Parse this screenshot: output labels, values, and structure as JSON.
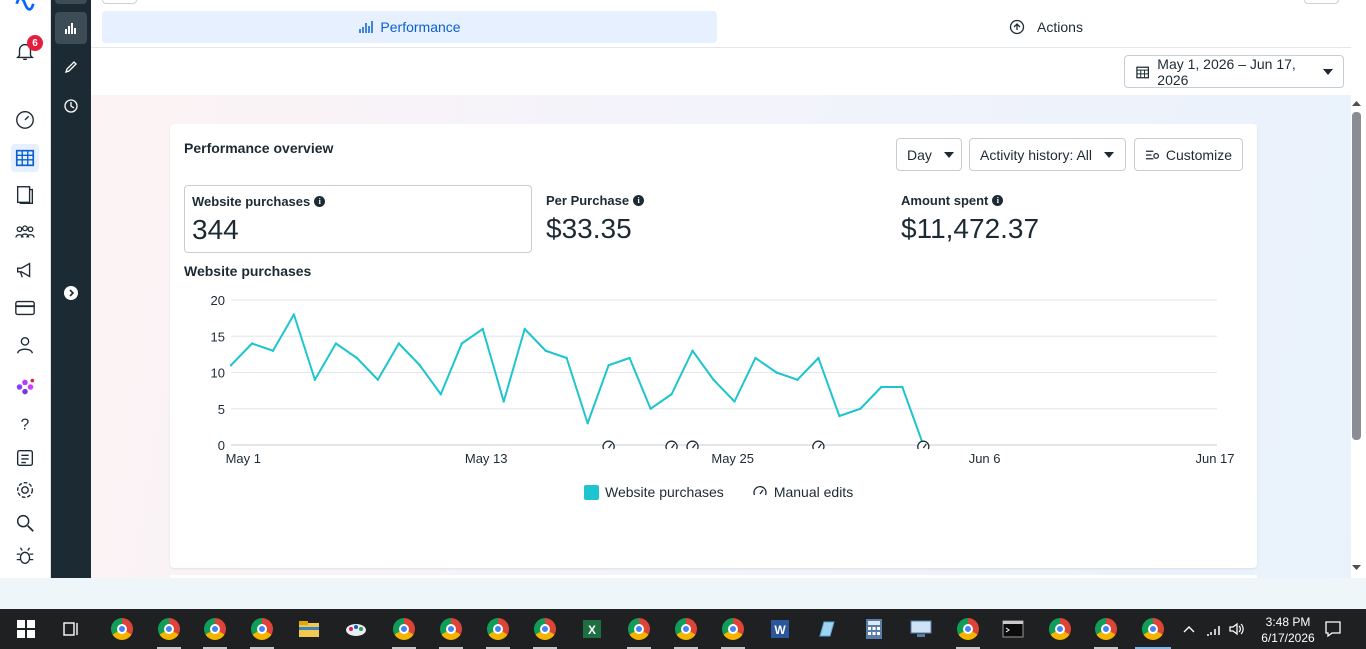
{
  "left_nav": {
    "notification_count": "6",
    "icons": [
      "meta-logo-icon",
      "bell-icon",
      "gauge-icon",
      "table-icon",
      "pages-icon",
      "audience-icon",
      "megaphone-icon",
      "billing-card-icon",
      "business-users-icon",
      "apps-icon",
      "help-icon",
      "news-icon",
      "settings-gear-icon",
      "search-icon",
      "bug-icon"
    ]
  },
  "sub_nav": {
    "icons": [
      "bar-chart-icon",
      "pencil-icon",
      "history-clock-icon",
      "expand-arrow-icon"
    ]
  },
  "tabs": {
    "performance": "Performance",
    "actions": "Actions"
  },
  "date_range": {
    "label": "May 1, 2026 – Jun 17, 2026"
  },
  "card": {
    "title": "Performance overview",
    "day_button": "Day",
    "activity_button": "Activity history: All",
    "customize_button": "Customize",
    "metrics": [
      {
        "label": "Website purchases",
        "value": "344",
        "selected": true
      },
      {
        "label": "Per Purchase",
        "value": "$33.35",
        "selected": false
      },
      {
        "label": "Amount spent",
        "value": "$11,472.37",
        "selected": false
      }
    ],
    "chart_title": "Website purchases"
  },
  "chart_data": {
    "type": "line",
    "title": "Website purchases",
    "xlabel": "",
    "ylabel": "",
    "ylim": [
      0,
      20
    ],
    "yticks": [
      "0",
      "5",
      "10",
      "15",
      "20"
    ],
    "xticks": [
      "May 1",
      "May 13",
      "May 25",
      "Jun 6",
      "Jun 17"
    ],
    "x_start": "May 1",
    "x_end": "Jun 17",
    "grid": true,
    "legend_position": "bottom",
    "color": "#1ec5ce",
    "series": [
      {
        "name": "Website purchases",
        "values": [
          11,
          14,
          13,
          18,
          9,
          14,
          12,
          9,
          14,
          11,
          7,
          14,
          16,
          6,
          16,
          13,
          12,
          3,
          11,
          12,
          5,
          7,
          13,
          9,
          6,
          12,
          10,
          9,
          12,
          4,
          5,
          8,
          8,
          0
        ]
      }
    ],
    "manual_edit_days": [
      18,
      21,
      22,
      28,
      33
    ],
    "legend": [
      "Website purchases",
      "Manual edits"
    ]
  },
  "taskbar": {
    "time": "3:48 PM",
    "date": "6/17/2026",
    "icons": [
      "windows-start-icon",
      "task-view-icon",
      "chrome-icon",
      "chrome-icon",
      "chrome-icon",
      "chrome-icon",
      "file-explorer-icon",
      "paint-icon",
      "chrome-icon",
      "chrome-icon",
      "chrome-icon",
      "chrome-icon",
      "excel-icon",
      "chrome-icon",
      "chrome-icon",
      "chrome-icon",
      "word-icon",
      "notes-icon",
      "calculator-icon",
      "network-icon",
      "chrome-icon",
      "terminal-icon",
      "chrome-icon",
      "chrome-icon",
      "chrome-icon",
      "chevron-up-icon",
      "wifi-icon",
      "volume-icon",
      "notification-center-icon"
    ]
  }
}
